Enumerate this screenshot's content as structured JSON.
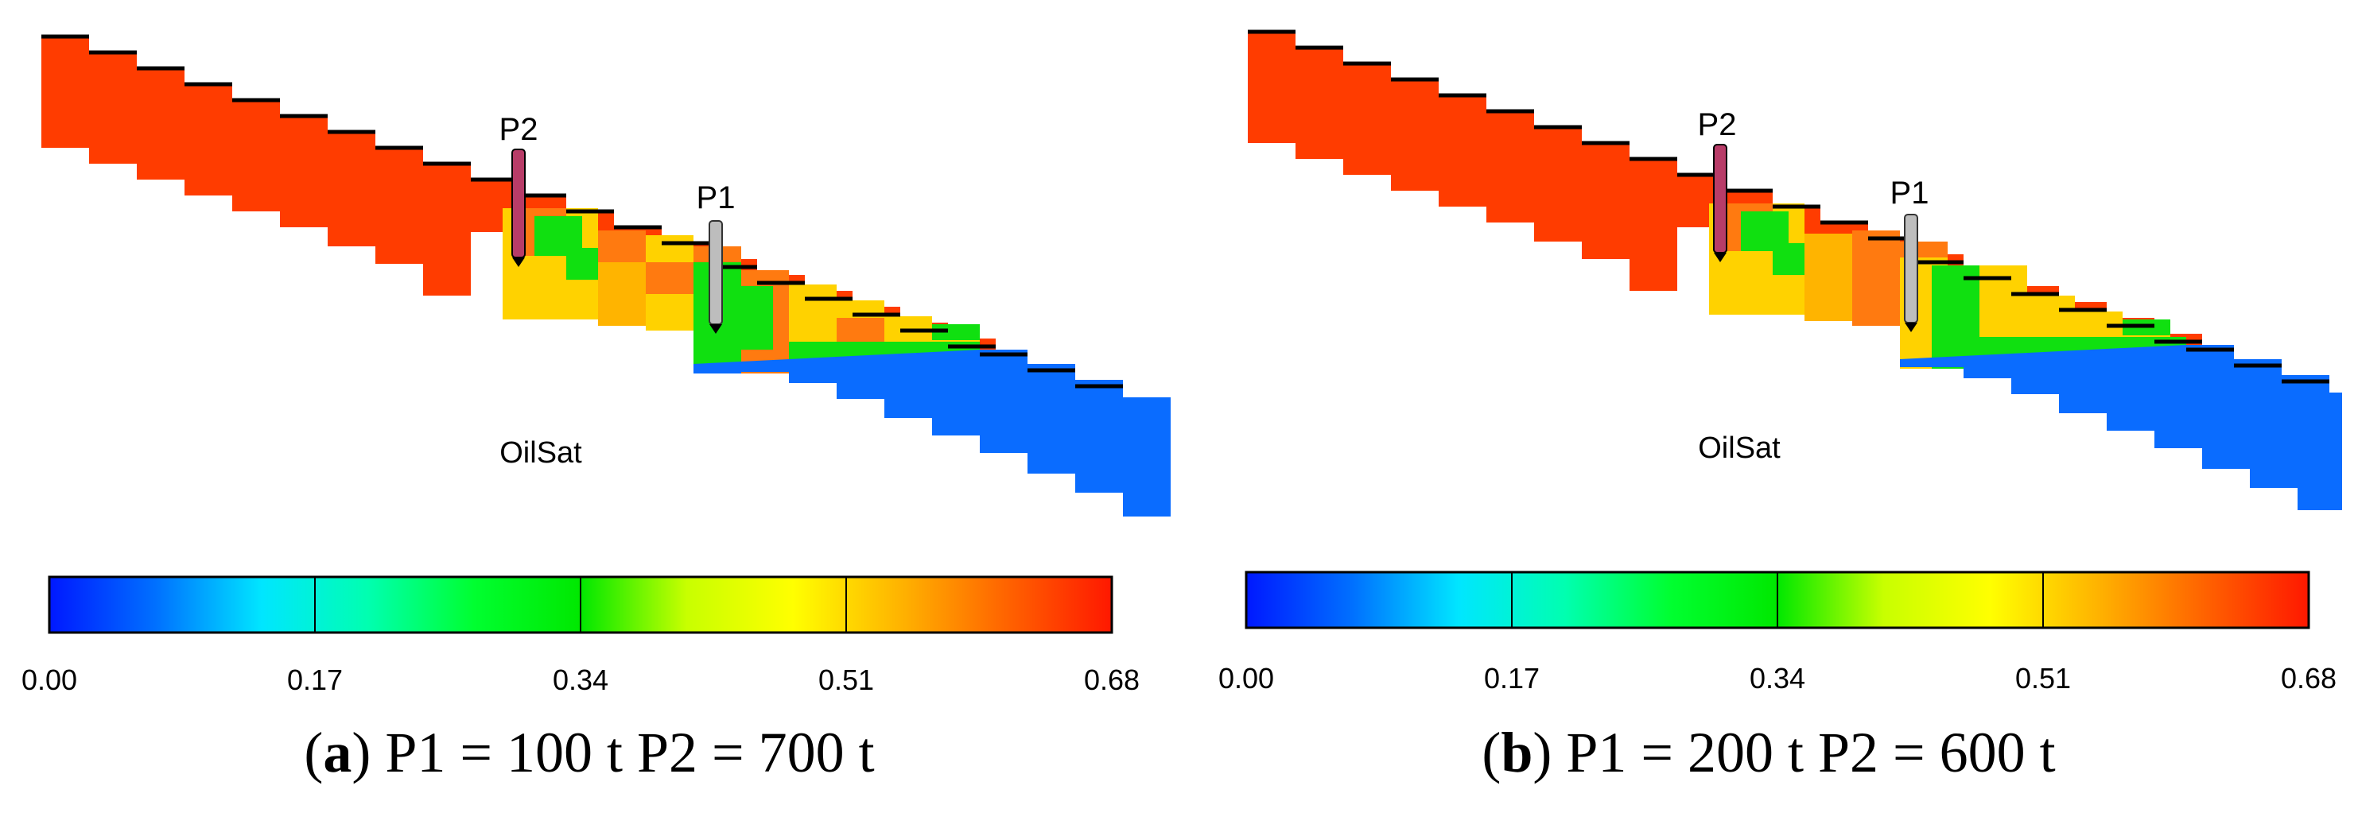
{
  "colorbar": {
    "ticks": [
      "0.00",
      "0.17",
      "0.34",
      "0.51",
      "0.68"
    ],
    "stops": [
      "#0018ff",
      "#0070ff",
      "#00e6ff",
      "#00ffb0",
      "#00ff30",
      "#00e800",
      "#c8ff00",
      "#ffff00",
      "#ffb400",
      "#ff6400",
      "#ff1800"
    ]
  },
  "panels": [
    {
      "id": "a",
      "property_label": "OilSat",
      "wells": [
        {
          "name": "P2",
          "color": "#b83c68"
        },
        {
          "name": "P1",
          "color": "#bdbdbd"
        }
      ],
      "caption": {
        "letter": "a",
        "text": "P1 = 100 t P2 = 700 t"
      }
    },
    {
      "id": "b",
      "property_label": "OilSat",
      "wells": [
        {
          "name": "P2",
          "color": "#b83c68"
        },
        {
          "name": "P1",
          "color": "#bdbdbd"
        }
      ],
      "caption": {
        "letter": "b",
        "text": "P1 = 200 t P2 = 600 t"
      }
    }
  ],
  "colors": {
    "oil": "#ff3c00",
    "orange": "#ff7a10",
    "yellow": "#ffd200",
    "green": "#10e010",
    "blue": "#0a6cff"
  }
}
